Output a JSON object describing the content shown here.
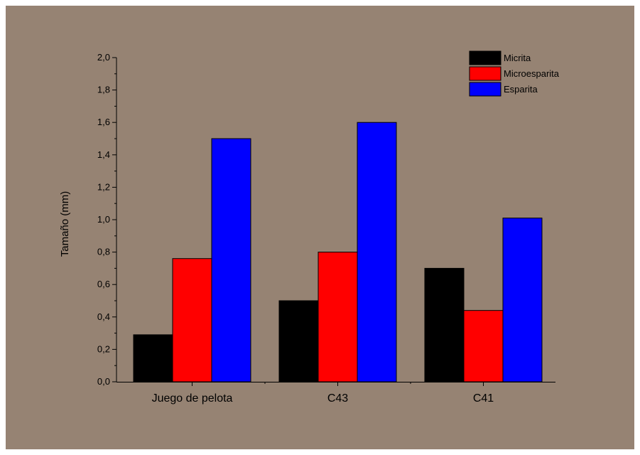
{
  "chart_data": {
    "type": "bar",
    "title": "",
    "xlabel": "",
    "ylabel": "Tamaño (mm)",
    "ylim": [
      0,
      2.0
    ],
    "y_ticks": [
      "0,0",
      "0,2",
      "0,4",
      "0,6",
      "0,8",
      "1,0",
      "1,2",
      "1,4",
      "1,6",
      "1,8",
      "2,0"
    ],
    "y_tick_values": [
      0,
      0.2,
      0.4,
      0.6,
      0.8,
      1.0,
      1.2,
      1.4,
      1.6,
      1.8,
      2.0
    ],
    "categories": [
      "Juego de pelota",
      "C43",
      "C41"
    ],
    "series": [
      {
        "name": "Micrita",
        "color": "#000000",
        "values": [
          0.29,
          0.5,
          0.7
        ]
      },
      {
        "name": "Microesparita",
        "color": "#ff0000",
        "values": [
          0.76,
          0.8,
          0.44
        ]
      },
      {
        "name": "Esparita",
        "color": "#0000ff",
        "values": [
          1.5,
          1.6,
          1.01
        ]
      }
    ],
    "grid": false,
    "legend_position": "top-right",
    "background_color": "#968373"
  }
}
